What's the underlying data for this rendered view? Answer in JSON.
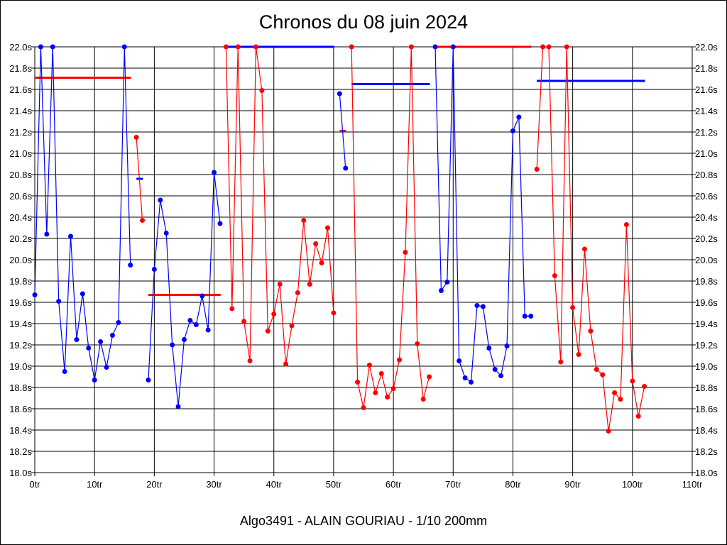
{
  "chart_data": {
    "type": "line",
    "title": "Chronos du 08 juin 2024",
    "footer": "Algo3491 - ALAIN GOURIAU - 1/10 200mm",
    "xlim": [
      0,
      110
    ],
    "ylim": [
      18.0,
      22.0
    ],
    "x_ticks": [
      0,
      10,
      20,
      30,
      40,
      50,
      60,
      70,
      80,
      90,
      100,
      110
    ],
    "x_tick_suffix": "tr",
    "y_ticks": [
      18.0,
      18.2,
      18.4,
      18.6,
      18.8,
      19.0,
      19.2,
      19.4,
      19.6,
      19.8,
      20.0,
      20.2,
      20.4,
      20.6,
      20.8,
      21.0,
      21.2,
      21.4,
      21.6,
      21.8,
      22.0
    ],
    "y_tick_suffix": "s",
    "grid": true,
    "colors": {
      "blue": "#0000ff",
      "red": "#ff0000"
    },
    "segments": [
      {
        "color": "blue",
        "start": 0,
        "values": [
          19.67,
          22.0,
          20.24,
          22.0,
          19.61,
          18.95,
          20.22,
          19.25,
          19.68,
          19.17,
          18.87,
          19.23,
          18.99,
          19.29,
          19.41,
          22.0,
          19.95
        ]
      },
      {
        "color": "red",
        "start": 17,
        "values": [
          21.15,
          20.37
        ]
      },
      {
        "color": "blue",
        "start": 19,
        "values": [
          18.87,
          19.91,
          20.56,
          20.25,
          19.2,
          18.62,
          19.25,
          19.43,
          19.39,
          19.66,
          19.34,
          20.82,
          20.34
        ]
      },
      {
        "color": "red",
        "start": 32,
        "values": [
          22.0,
          19.54,
          22.0,
          19.42,
          19.05,
          22.0,
          21.59,
          19.33,
          19.49,
          19.77,
          19.02,
          19.38,
          19.69,
          20.37,
          19.77,
          20.15,
          19.97,
          20.3,
          19.5
        ]
      },
      {
        "color": "blue",
        "start": 51,
        "values": [
          21.56,
          20.86
        ]
      },
      {
        "color": "red",
        "start": 53,
        "values": [
          22.0,
          18.85,
          18.61,
          19.01,
          18.75,
          18.93,
          18.71,
          18.79,
          19.06,
          20.07,
          22.0,
          19.21,
          18.69,
          18.9
        ]
      },
      {
        "color": "blue",
        "start": 67,
        "values": [
          22.0,
          19.71,
          19.79,
          22.0,
          19.05,
          18.89,
          18.85,
          19.57,
          19.56,
          19.17,
          18.97,
          18.91,
          19.19,
          21.21,
          21.34,
          19.47,
          19.47
        ]
      },
      {
        "color": "red",
        "start": 84,
        "values": [
          20.85,
          22.0,
          22.0,
          19.85,
          19.04,
          22.0,
          19.55,
          19.11,
          20.1,
          19.33,
          18.97,
          18.92,
          18.39,
          18.75,
          18.69,
          20.33,
          18.86,
          18.53,
          18.81
        ]
      }
    ],
    "averages": [
      {
        "color": "red",
        "from": 0,
        "to": 16,
        "value": 21.71
      },
      {
        "color": "blue",
        "from": 17,
        "to": 18,
        "value": 20.76
      },
      {
        "color": "red",
        "from": 19,
        "to": 31,
        "value": 19.67
      },
      {
        "color": "blue",
        "from": 32,
        "to": 50,
        "value": 22.0
      },
      {
        "color": "red",
        "from": 51,
        "to": 52,
        "value": 21.21
      },
      {
        "color": "blue",
        "from": 53,
        "to": 66,
        "value": 21.65
      },
      {
        "color": "red",
        "from": 67,
        "to": 83,
        "value": 22.0
      },
      {
        "color": "blue",
        "from": 84,
        "to": 102,
        "value": 21.68
      }
    ]
  }
}
